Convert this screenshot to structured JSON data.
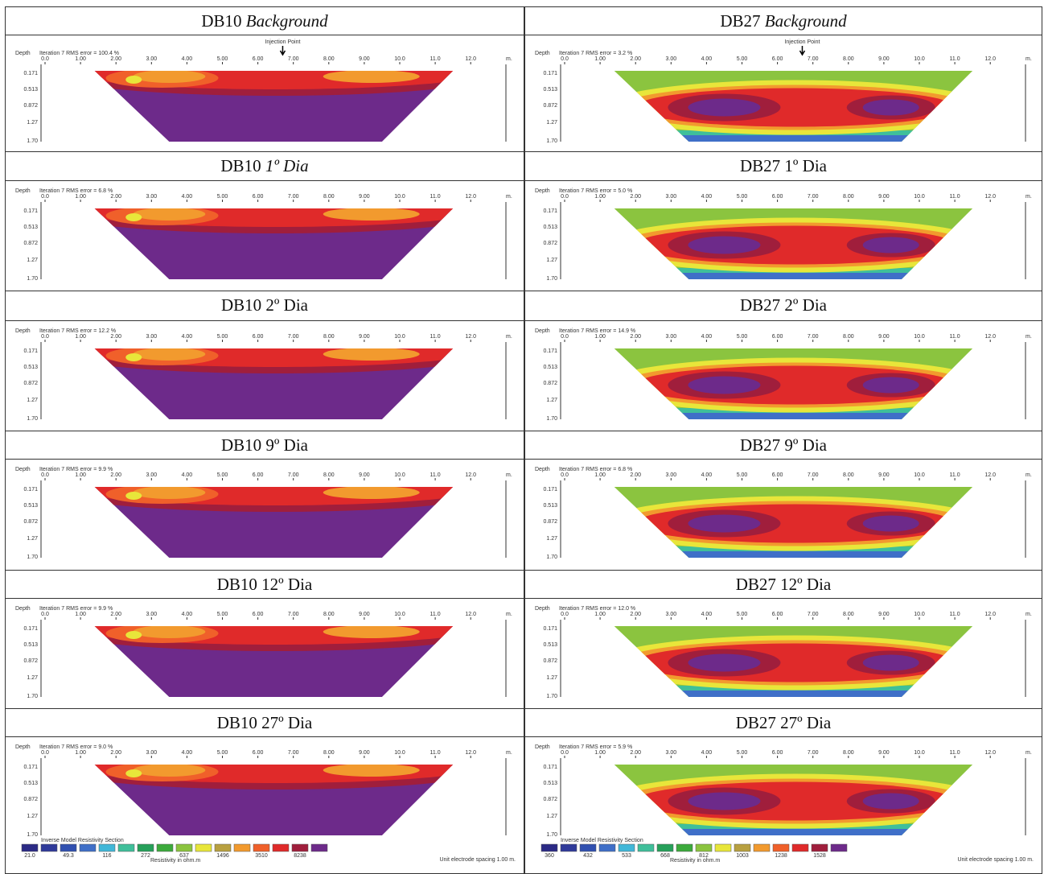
{
  "table": {
    "rows": [
      {
        "cells": [
          {
            "site": "DB10",
            "label": "Background",
            "italic": true,
            "rms": "Iteration 7 RMS error = 100.4 %",
            "injection": "Injection Point",
            "style": "a"
          },
          {
            "site": "DB27",
            "label": "Background",
            "italic": true,
            "rms": "Iteration 7 RMS error = 3.2 %",
            "injection": "Injection Point",
            "style": "b"
          }
        ]
      },
      {
        "cells": [
          {
            "site": "DB10",
            "label": "1º Dia",
            "italic": true,
            "rms": "Iteration 7 RMS error = 6.8 %",
            "style": "a"
          },
          {
            "site": "DB27",
            "label": "1º Dia",
            "italic": false,
            "rms": "Iteration 7 RMS error = 5.0 %",
            "style": "b"
          }
        ]
      },
      {
        "cells": [
          {
            "site": "DB10",
            "label": "2º Dia",
            "italic": false,
            "rms": "Iteration 7 RMS error = 12.2 %",
            "style": "a"
          },
          {
            "site": "DB27",
            "label": "2º Dia",
            "italic": false,
            "rms": "Iteration 7 RMS error = 14.9 %",
            "style": "b"
          }
        ]
      },
      {
        "cells": [
          {
            "site": "DB10",
            "label": "9º Dia",
            "italic": false,
            "rms": "Iteration 7 RMS error = 9.9 %",
            "style": "a"
          },
          {
            "site": "DB27",
            "label": "9º Dia",
            "italic": false,
            "rms": "Iteration 7 RMS error = 6.8 %",
            "style": "b"
          }
        ]
      },
      {
        "cells": [
          {
            "site": "DB10",
            "label": "12º Dia",
            "italic": false,
            "rms": "Iteration 7 RMS error = 9.9 %",
            "style": "a"
          },
          {
            "site": "DB27",
            "label": "12º Dia",
            "italic": false,
            "rms": "Iteration 7 RMS error = 12.0 %",
            "style": "b"
          }
        ]
      },
      {
        "cells": [
          {
            "site": "DB10",
            "label": "27º Dia",
            "italic": false,
            "rms": "Iteration 7 RMS error = 9.0 %",
            "style": "a",
            "legend_values": [
              "21.0",
              "49.3",
              "116",
              "272",
              "637",
              "1496",
              "3510",
              "8238"
            ]
          },
          {
            "site": "DB27",
            "label": "27º Dia",
            "italic": false,
            "rms": "Iteration 7 RMS error = 5.9 %",
            "style": "b",
            "legend_values": [
              "360",
              "432",
              "533",
              "668",
              "812",
              "1003",
              "1238",
              "1528"
            ]
          }
        ]
      }
    ]
  },
  "axis": {
    "depth": "Depth",
    "x_ticks": [
      "0.0",
      "1.00",
      "2.00",
      "3.00",
      "4.00",
      "5.00",
      "6.00",
      "7.00",
      "8.00",
      "9.00",
      "10.0",
      "11.0",
      "12.0"
    ],
    "x_unit": "m.",
    "depth_ticks": [
      "0.171",
      "0.513",
      "0.872",
      "1.27",
      "1.70"
    ]
  },
  "legend": {
    "title": "Inverse Model Resistivity Section",
    "unit": "Resistivity in ohm.m",
    "spacing": "Unit electrode spacing 1.00 m."
  }
}
